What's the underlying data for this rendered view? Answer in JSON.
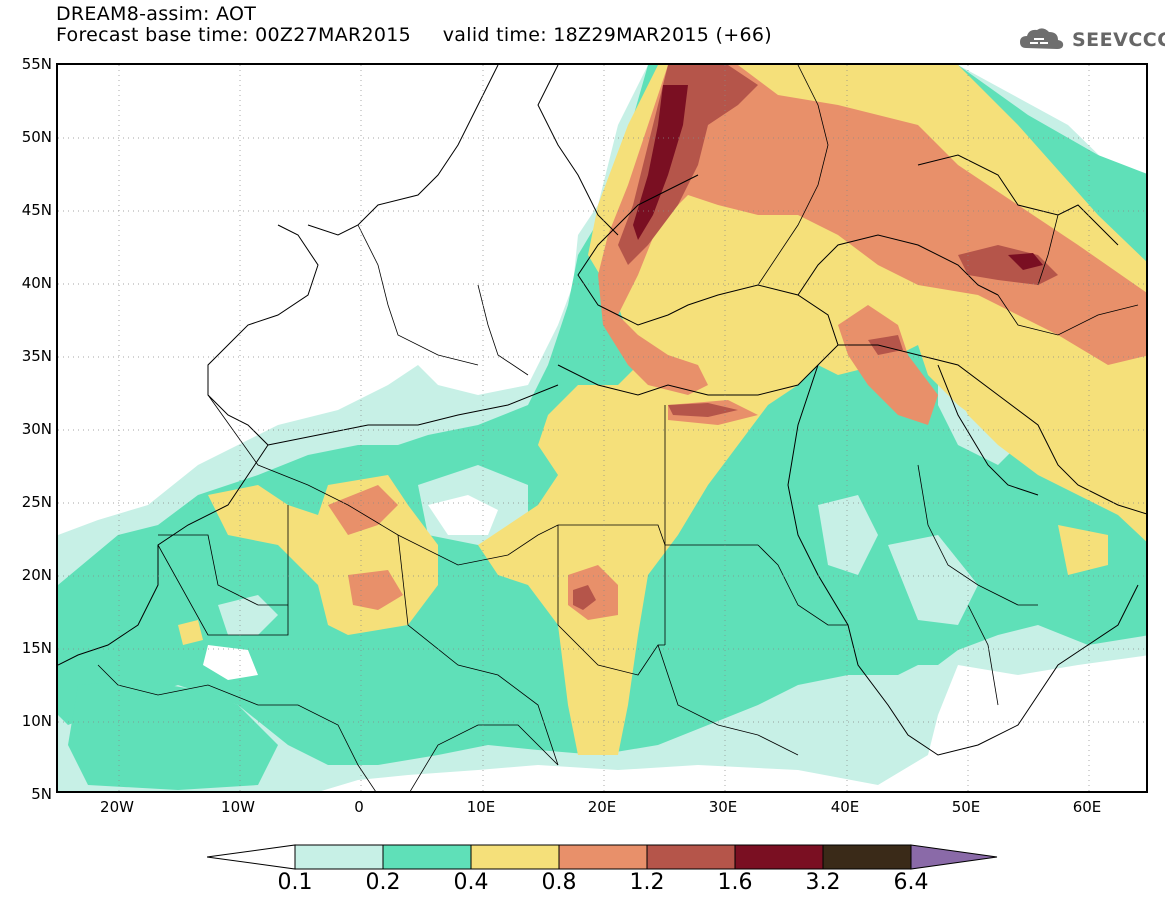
{
  "header": {
    "title_line1": "DREAM8-assim: AOT",
    "title_line2": "Forecast base time: 00Z27MAR2015     valid time: 18Z29MAR2015 (+66)",
    "logo_text": "SEEVCCC"
  },
  "map": {
    "lat_labels": [
      "55N",
      "50N",
      "45N",
      "40N",
      "35N",
      "30N",
      "25N",
      "20N",
      "15N",
      "10N",
      "5N"
    ],
    "lon_labels": [
      "20W",
      "10W",
      "0",
      "10E",
      "20E",
      "30E",
      "40E",
      "50E",
      "60E"
    ],
    "lat_range": [
      5,
      55
    ],
    "lon_range": [
      -25,
      65
    ]
  },
  "legend": {
    "labels": [
      "0.1",
      "0.2",
      "0.4",
      "0.8",
      "1.2",
      "1.6",
      "3.2",
      "6.4"
    ],
    "colors": [
      "#ffffff",
      "#c7f0e6",
      "#5fe0b8",
      "#f5e07a",
      "#e8906a",
      "#b5554a",
      "#7a0f22",
      "#3a2a18",
      "#8a6aa8"
    ]
  }
}
